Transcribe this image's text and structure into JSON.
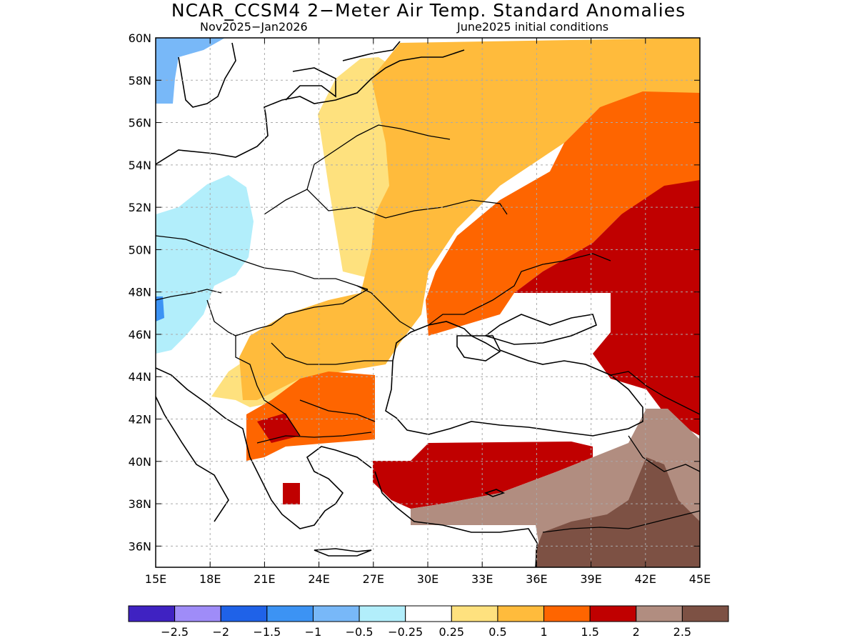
{
  "title": "NCAR_CCSM4 2−Meter Air Temp. Standard Anomalies",
  "subtitle_left": "Nov2025−Jan2026",
  "subtitle_right": "June2025 initial conditions",
  "lat_labels": [
    "60N",
    "58N",
    "56N",
    "54N",
    "52N",
    "50N",
    "48N",
    "46N",
    "44N",
    "42N",
    "40N",
    "38N",
    "36N"
  ],
  "lon_labels": [
    "15E",
    "18E",
    "21E",
    "24E",
    "27E",
    "30E",
    "33E",
    "36E",
    "39E",
    "42E",
    "45E"
  ],
  "colorbar": {
    "colors": [
      "#3f22c2",
      "#9f8cf8",
      "#1f62e8",
      "#3c93f4",
      "#78b8f8",
      "#b2eefb",
      "#ffffff",
      "#fee17e",
      "#ffbb3c",
      "#fe6500",
      "#c00000",
      "#b18d80",
      "#7d5144"
    ],
    "labels": [
      "−2.5",
      "−2",
      "−1.5",
      "−1",
      "−0.5",
      "−0.25",
      "0.25",
      "0.5",
      "1",
      "1.5",
      "2",
      "2.5"
    ]
  },
  "map_extent": {
    "lon": [
      15,
      45
    ],
    "lat": [
      35,
      60
    ]
  }
}
